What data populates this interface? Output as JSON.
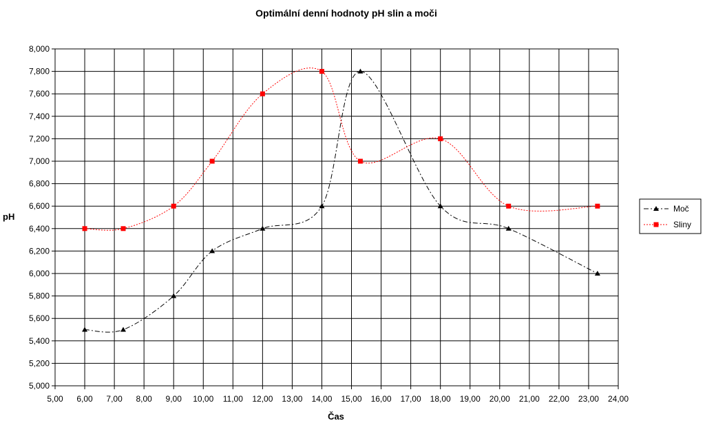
{
  "chart_data": {
    "type": "line",
    "title": "Optimální denní hodnoty pH slin a moči",
    "xlabel": "Čas",
    "ylabel": "pH",
    "xlim": [
      5,
      24
    ],
    "ylim": [
      5,
      8
    ],
    "x_ticks": [
      "5,00",
      "6,00",
      "7,00",
      "8,00",
      "9,00",
      "10,00",
      "11,00",
      "12,00",
      "13,00",
      "14,00",
      "15,00",
      "16,00",
      "17,00",
      "18,00",
      "19,00",
      "20,00",
      "21,00",
      "22,00",
      "23,00",
      "24,00"
    ],
    "y_ticks": [
      "5,000",
      "5,200",
      "5,400",
      "5,600",
      "5,800",
      "6,000",
      "6,200",
      "6,400",
      "6,600",
      "6,800",
      "7,000",
      "7,200",
      "7,400",
      "7,600",
      "7,800",
      "8,000"
    ],
    "grid": true,
    "smooth": true,
    "legend_position": "right",
    "series": [
      {
        "name": "Moč",
        "color": "#000000",
        "marker": "triangle",
        "line_style": "dash-dot",
        "x": [
          6.0,
          7.3,
          9.0,
          10.3,
          12.0,
          14.0,
          15.3,
          18.0,
          20.3,
          23.3
        ],
        "y": [
          5.5,
          5.5,
          5.8,
          6.2,
          6.4,
          6.6,
          7.8,
          6.6,
          6.4,
          6.0
        ]
      },
      {
        "name": "Sliny",
        "color": "#ff0000",
        "marker": "square",
        "line_style": "dotted",
        "x": [
          6.0,
          7.3,
          9.0,
          10.3,
          12.0,
          14.0,
          15.3,
          18.0,
          20.3,
          23.3
        ],
        "y": [
          6.4,
          6.4,
          6.6,
          7.0,
          7.6,
          7.8,
          7.0,
          7.2,
          6.6,
          6.6
        ]
      }
    ]
  }
}
